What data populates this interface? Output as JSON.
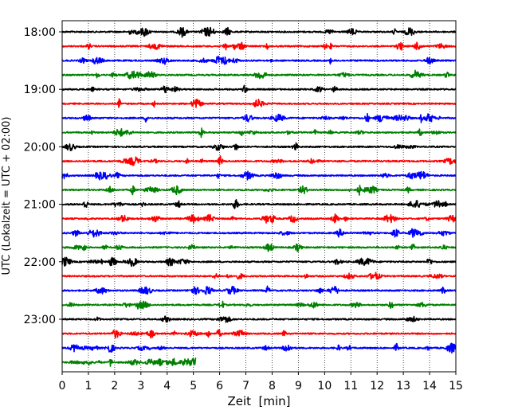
{
  "chart_data": {
    "type": "line",
    "subtype": "helicorder",
    "xlabel": "Zeit  [min]",
    "ylabel": "UTC (Lokalzeit = UTC + 02:00)",
    "xlim": [
      0,
      15
    ],
    "x_ticks": [
      0,
      1,
      2,
      3,
      4,
      5,
      6,
      7,
      8,
      9,
      10,
      11,
      12,
      13,
      14,
      15
    ],
    "x_tick_labels": [
      "0",
      "1",
      "2",
      "3",
      "4",
      "5",
      "6",
      "7",
      "8",
      "9",
      "10",
      "11",
      "12",
      "13",
      "14",
      "15"
    ],
    "grid": "vertical dotted lines at each minute",
    "y_tick_labels": [
      "18:00",
      "19:00",
      "20:00",
      "21:00",
      "22:00",
      "23:00"
    ],
    "trace_interval_minutes": 15,
    "traces_per_hour": 4,
    "color_cycle": [
      "#000000",
      "#ff0000",
      "#0000ff",
      "#008000"
    ],
    "series": [
      {
        "start": "18:00",
        "color": "#000000",
        "end_minute": 15
      },
      {
        "start": "18:15",
        "color": "#ff0000",
        "end_minute": 15
      },
      {
        "start": "18:30",
        "color": "#0000ff",
        "end_minute": 15
      },
      {
        "start": "18:45",
        "color": "#008000",
        "end_minute": 15
      },
      {
        "start": "19:00",
        "color": "#000000",
        "end_minute": 15
      },
      {
        "start": "19:15",
        "color": "#ff0000",
        "end_minute": 15
      },
      {
        "start": "19:30",
        "color": "#0000ff",
        "end_minute": 15
      },
      {
        "start": "19:45",
        "color": "#008000",
        "end_minute": 15
      },
      {
        "start": "20:00",
        "color": "#000000",
        "end_minute": 15
      },
      {
        "start": "20:15",
        "color": "#ff0000",
        "end_minute": 15
      },
      {
        "start": "20:30",
        "color": "#0000ff",
        "end_minute": 15
      },
      {
        "start": "20:45",
        "color": "#008000",
        "end_minute": 15
      },
      {
        "start": "21:00",
        "color": "#000000",
        "end_minute": 15
      },
      {
        "start": "21:15",
        "color": "#ff0000",
        "end_minute": 15
      },
      {
        "start": "21:30",
        "color": "#0000ff",
        "end_minute": 15
      },
      {
        "start": "21:45",
        "color": "#008000",
        "end_minute": 15
      },
      {
        "start": "22:00",
        "color": "#000000",
        "end_minute": 15
      },
      {
        "start": "22:15",
        "color": "#ff0000",
        "end_minute": 15
      },
      {
        "start": "22:30",
        "color": "#0000ff",
        "end_minute": 15
      },
      {
        "start": "22:45",
        "color": "#008000",
        "end_minute": 15
      },
      {
        "start": "23:00",
        "color": "#000000",
        "end_minute": 15
      },
      {
        "start": "23:15",
        "color": "#ff0000",
        "end_minute": 15
      },
      {
        "start": "23:30",
        "color": "#0000ff",
        "end_minute": 15
      },
      {
        "start": "23:45",
        "color": "#008000",
        "end_minute": 5.1
      }
    ]
  }
}
